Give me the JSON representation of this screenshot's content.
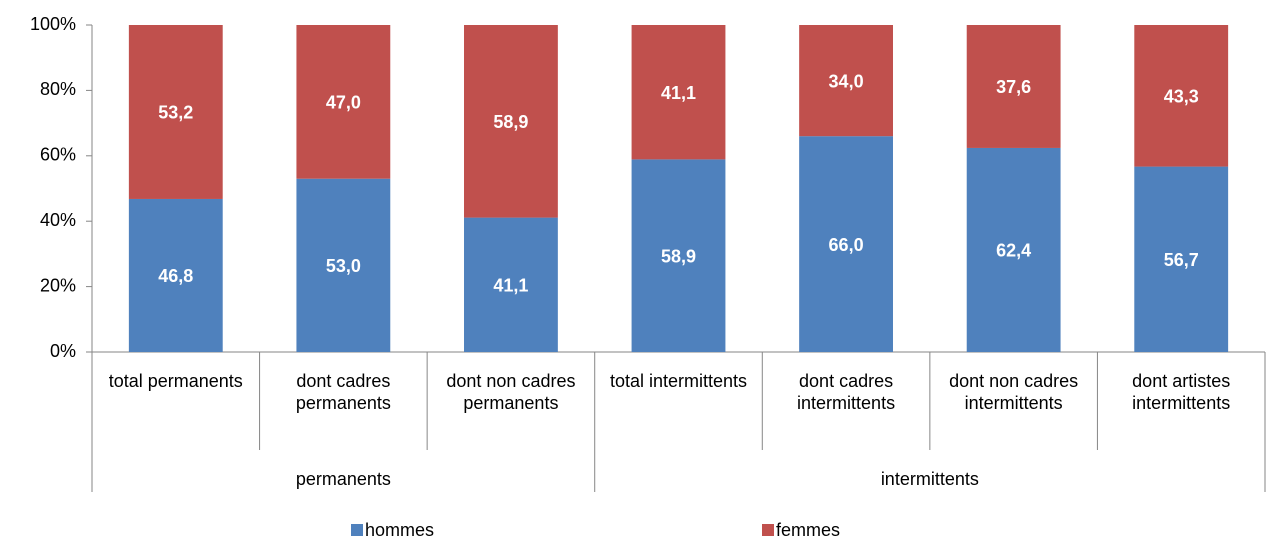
{
  "chart_data": {
    "type": "stacked_bar",
    "groups": [
      {
        "label": "permanents",
        "categories": [
          "total permanents",
          "dont cadres permanents",
          "dont non cadres permanents"
        ]
      },
      {
        "label": "intermittents",
        "categories": [
          "total intermittents",
          "dont cadres intermittents",
          "dont non cadres intermittents",
          "dont artistes intermittents"
        ]
      }
    ],
    "series": [
      {
        "name": "hommes",
        "color": "#4f81bd",
        "values": [
          46.8,
          53.0,
          41.1,
          58.9,
          66.0,
          62.4,
          56.7
        ],
        "value_labels": [
          "46,8",
          "53,0",
          "41,1",
          "58,9",
          "66,0",
          "62,4",
          "56,7"
        ]
      },
      {
        "name": "femmes",
        "color": "#c0504d",
        "values": [
          53.2,
          47.0,
          58.9,
          41.1,
          34.0,
          37.6,
          43.3
        ],
        "value_labels": [
          "53,2",
          "47,0",
          "58,9",
          "41,1",
          "34,0",
          "37,6",
          "43,3"
        ]
      }
    ],
    "ylim": [
      0,
      100
    ],
    "yticks": [
      {
        "value": 0,
        "label": "0%"
      },
      {
        "value": 20,
        "label": "20%"
      },
      {
        "value": 40,
        "label": "40%"
      },
      {
        "value": 60,
        "label": "60%"
      },
      {
        "value": 80,
        "label": "80%"
      },
      {
        "value": 100,
        "label": "100%"
      }
    ],
    "legend": "bottom"
  }
}
